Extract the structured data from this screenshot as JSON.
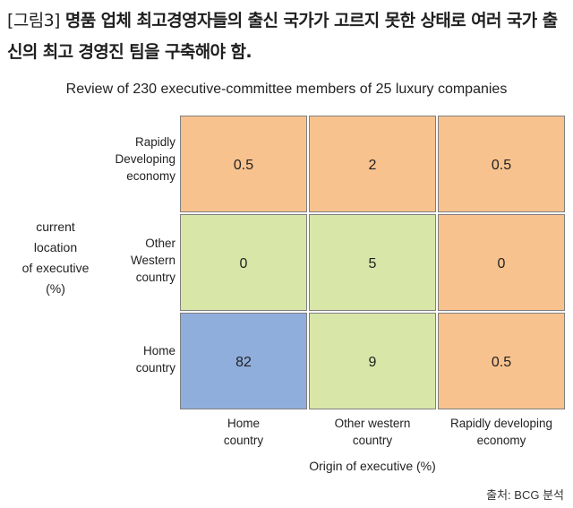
{
  "caption": {
    "tag": "[그림3]",
    "text": " 명품 업체 최고경영자들의 출신 국가가 고르지 못한 상태로 여러 국가 출신의 최고 경영진 팀을 구축해야 함."
  },
  "source": "출처: BCG 분석",
  "colors": {
    "orange": "#F8C28E",
    "green": "#D8E6A8",
    "blue": "#8FAEDC",
    "grid": "#7f7f7f"
  },
  "chart_data": {
    "type": "heatmap",
    "title": "Review of 230 executive-committee members of 25 luxury companies",
    "xlabel": "Origin of executive (%)",
    "ylabel": "current\nlocation\nof executive\n(%)",
    "columns": [
      "Home\ncountry",
      "Other western\ncountry",
      "Rapidly developing\neconomy"
    ],
    "rows": [
      "Rapidly\nDeveloping\neconomy",
      "Other\nWestern\ncountry",
      "Home\ncountry"
    ],
    "values": [
      [
        0.5,
        2,
        0.5
      ],
      [
        0,
        5,
        0
      ],
      [
        82,
        9,
        0.5
      ]
    ],
    "cell_colors": [
      [
        "orange",
        "orange",
        "orange"
      ],
      [
        "green",
        "green",
        "orange"
      ],
      [
        "blue",
        "green",
        "orange"
      ]
    ]
  }
}
